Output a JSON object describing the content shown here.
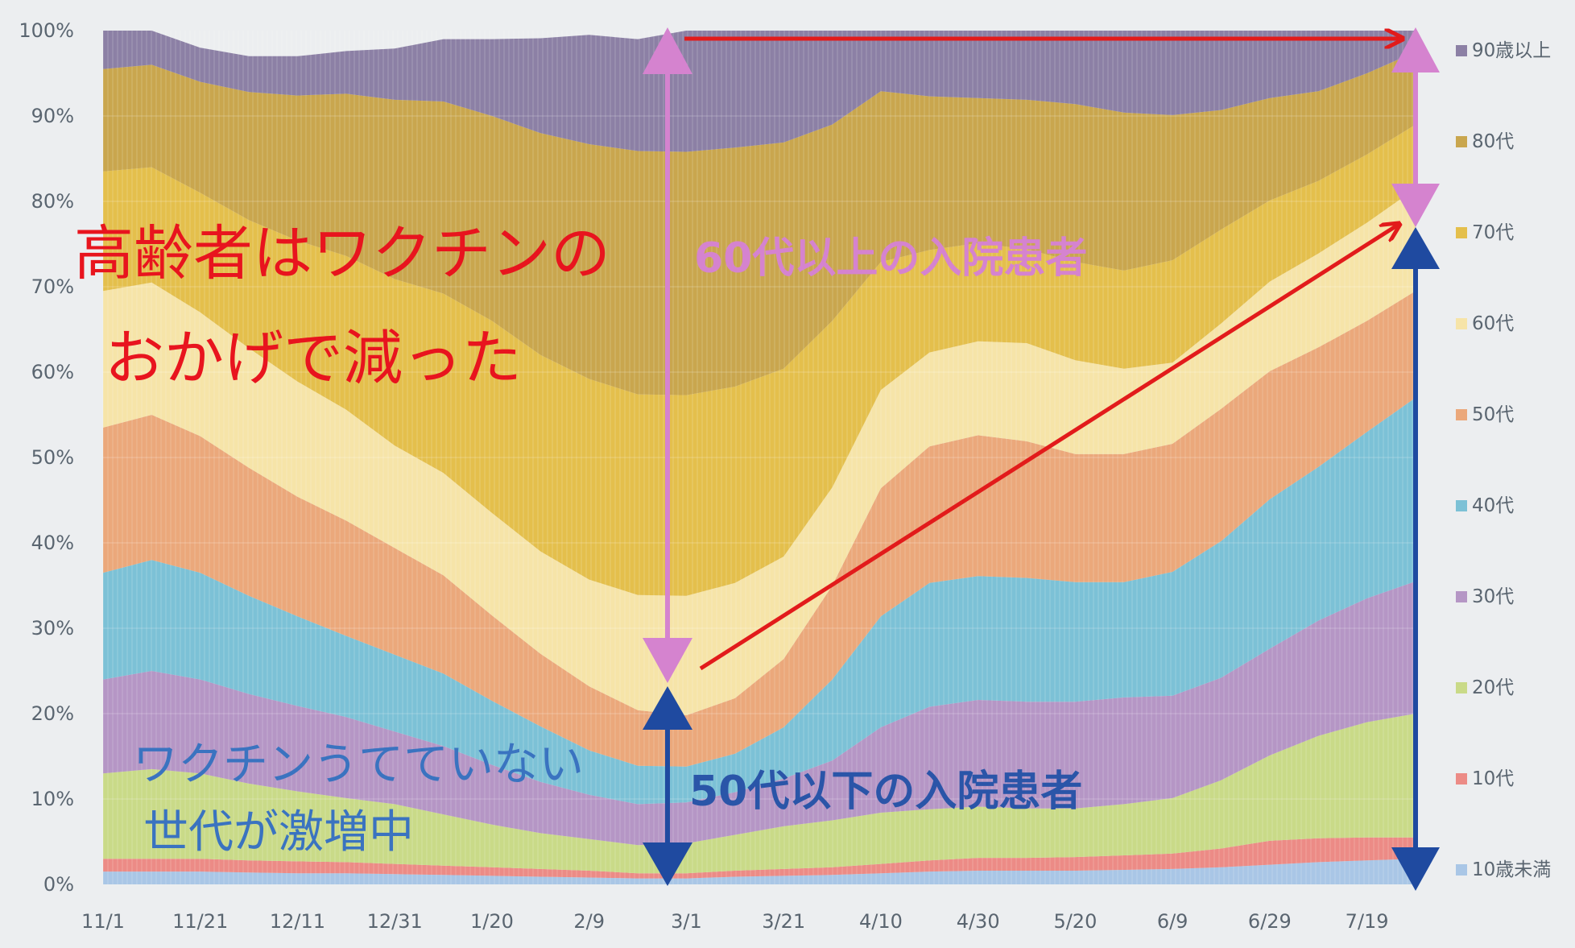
{
  "chart_data": {
    "type": "area",
    "stacked_percent": true,
    "ylim": [
      0,
      100
    ],
    "y_ticks": [
      "0%",
      "10%",
      "20%",
      "30%",
      "40%",
      "50%",
      "60%",
      "70%",
      "80%",
      "90%",
      "100%"
    ],
    "x": [
      "11/1",
      "11/11",
      "11/21",
      "12/1",
      "12/11",
      "12/21",
      "12/31",
      "1/10",
      "1/20",
      "1/30",
      "2/9",
      "2/19",
      "3/1",
      "3/11",
      "3/21",
      "3/31",
      "4/10",
      "4/20",
      "4/30",
      "5/10",
      "5/20",
      "5/30",
      "6/9",
      "6/19",
      "6/29",
      "7/9",
      "7/19",
      "7/27"
    ],
    "x_tick_labels": [
      "11/1",
      "11/21",
      "12/11",
      "12/31",
      "1/20",
      "2/9",
      "3/1",
      "3/21",
      "4/10",
      "4/30",
      "5/20",
      "6/9",
      "6/29",
      "7/19"
    ],
    "series": [
      {
        "name": "10歳未満",
        "color": "#a9c6e6",
        "values": [
          1.5,
          1.5,
          1.5,
          1.4,
          1.3,
          1.3,
          1.2,
          1.1,
          1.0,
          0.9,
          0.8,
          0.7,
          0.7,
          0.9,
          1.0,
          1.1,
          1.3,
          1.5,
          1.6,
          1.6,
          1.6,
          1.7,
          1.8,
          2.0,
          2.3,
          2.6,
          2.8,
          3.0
        ]
      },
      {
        "name": "10代",
        "color": "#ec8b86",
        "values": [
          1.5,
          1.5,
          1.5,
          1.4,
          1.4,
          1.3,
          1.2,
          1.1,
          1.0,
          0.9,
          0.8,
          0.6,
          0.6,
          0.7,
          0.8,
          0.9,
          1.1,
          1.3,
          1.5,
          1.5,
          1.6,
          1.7,
          1.8,
          2.2,
          2.8,
          2.8,
          2.7,
          2.5
        ]
      },
      {
        "name": "20代",
        "color": "#c9da88",
        "values": [
          10.0,
          10.5,
          10.0,
          9.0,
          8.2,
          7.5,
          7.0,
          6.0,
          5.0,
          4.2,
          3.7,
          3.3,
          3.5,
          4.2,
          5.0,
          5.5,
          6.0,
          6.0,
          6.0,
          5.8,
          5.7,
          6.0,
          6.5,
          8.0,
          10.0,
          12.0,
          13.5,
          14.5
        ]
      },
      {
        "name": "30代",
        "color": "#b596c5",
        "values": [
          11.0,
          11.5,
          11.0,
          10.5,
          10.0,
          9.5,
          8.5,
          8.0,
          7.0,
          6.0,
          5.2,
          4.8,
          4.8,
          5.0,
          5.6,
          7.0,
          10.0,
          12.0,
          12.5,
          12.5,
          12.5,
          12.5,
          12.0,
          12.0,
          12.5,
          13.5,
          14.5,
          15.5
        ]
      },
      {
        "name": "40代",
        "color": "#7cc1d6",
        "values": [
          12.5,
          13.0,
          12.5,
          11.5,
          10.5,
          9.5,
          9.0,
          8.5,
          7.5,
          6.5,
          5.2,
          4.5,
          4.2,
          4.5,
          6.0,
          9.5,
          13.0,
          14.5,
          14.5,
          14.5,
          14.0,
          13.5,
          14.5,
          16.0,
          17.5,
          18.0,
          19.5,
          21.5
        ]
      },
      {
        "name": "50代",
        "color": "#eba87b",
        "values": [
          17.0,
          17.0,
          16.0,
          15.0,
          14.0,
          13.5,
          12.5,
          11.5,
          10.0,
          8.5,
          7.5,
          6.5,
          6.0,
          6.5,
          8.0,
          11.0,
          15.0,
          16.0,
          16.5,
          16.0,
          15.0,
          15.0,
          15.0,
          15.5,
          15.0,
          14.0,
          13.0,
          12.5
        ]
      },
      {
        "name": "60代",
        "color": "#f6e4a8",
        "values": [
          16.0,
          15.5,
          14.5,
          14.0,
          13.5,
          13.0,
          12.0,
          12.0,
          12.0,
          12.0,
          12.5,
          13.5,
          14.0,
          13.5,
          12.0,
          11.5,
          11.5,
          11.0,
          11.0,
          11.5,
          11.0,
          10.0,
          9.5,
          10.0,
          10.5,
          11.0,
          11.5,
          12.0
        ]
      },
      {
        "name": "70代",
        "color": "#e4bf4c",
        "values": [
          14.0,
          13.5,
          14.0,
          15.0,
          16.5,
          18.0,
          19.5,
          21.0,
          22.5,
          23.0,
          23.5,
          23.5,
          23.5,
          23.0,
          22.0,
          19.5,
          15.0,
          12.0,
          11.5,
          11.0,
          11.5,
          11.5,
          12.0,
          11.0,
          9.5,
          8.5,
          8.0,
          7.5
        ]
      },
      {
        "name": "80代",
        "color": "#c9a64e",
        "values": [
          12.0,
          12.0,
          13.0,
          15.0,
          17.0,
          19.0,
          21.0,
          22.5,
          24.0,
          26.0,
          27.5,
          28.5,
          28.5,
          28.0,
          26.5,
          23.0,
          20.0,
          18.0,
          17.0,
          17.5,
          18.5,
          18.5,
          17.0,
          14.0,
          12.0,
          10.5,
          9.5,
          8.5
        ]
      },
      {
        "name": "90歳以上",
        "color": "#8c80a5",
        "values": [
          4.5,
          4.5,
          4.0,
          4.2,
          4.6,
          5.0,
          6.0,
          7.3,
          9.0,
          11.1,
          12.8,
          13.1,
          14.2,
          13.7,
          13.1,
          11.1,
          7.1,
          7.7,
          7.9,
          8.1,
          8.6,
          9.6,
          9.9,
          9.3,
          8.4,
          7.1,
          5.3,
          4.0
        ]
      }
    ]
  },
  "annotations": {
    "over60": "60代以上の入院患者",
    "under50": "50代以下の入院患者",
    "note_red_line1": "高齢者はワクチンの",
    "note_red_line2": "おかげで減った",
    "note_blue_line1": "ワクチンうてていない",
    "note_blue_line2": "世代が激増中"
  },
  "colors": {
    "pink": "#d583cf",
    "blue": "#1f4aa0",
    "red": "#e21b1b"
  }
}
